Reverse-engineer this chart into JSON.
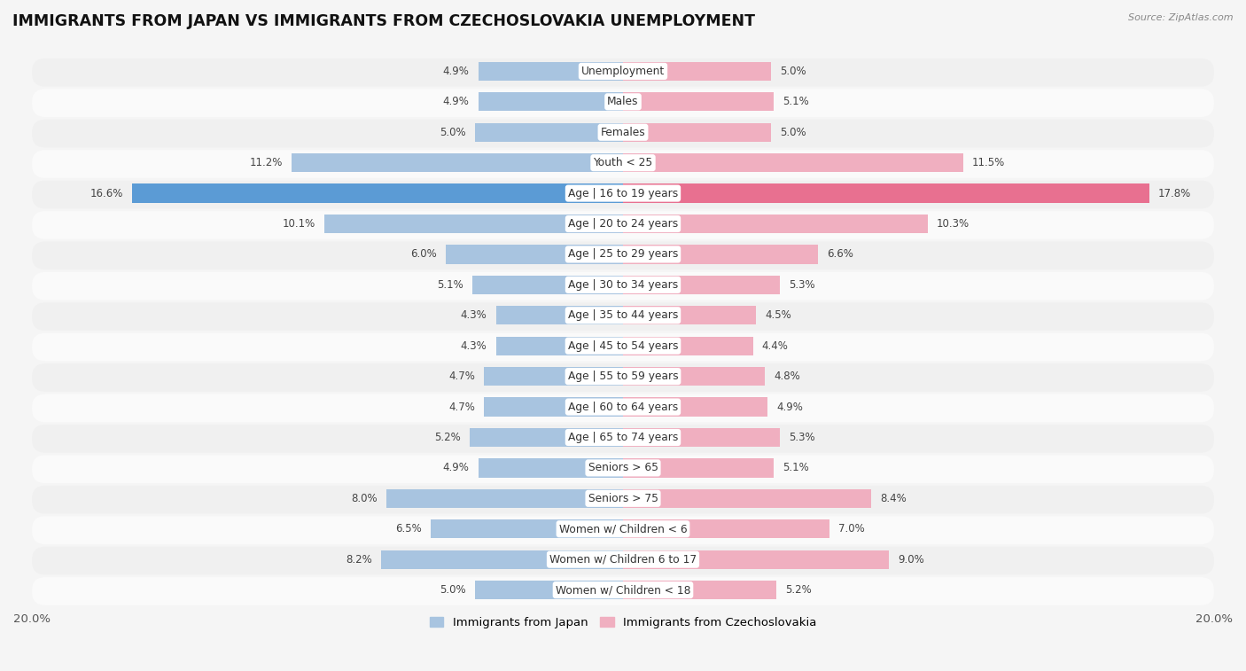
{
  "title": "IMMIGRANTS FROM JAPAN VS IMMIGRANTS FROM CZECHOSLOVAKIA UNEMPLOYMENT",
  "source": "Source: ZipAtlas.com",
  "categories": [
    "Unemployment",
    "Males",
    "Females",
    "Youth < 25",
    "Age | 16 to 19 years",
    "Age | 20 to 24 years",
    "Age | 25 to 29 years",
    "Age | 30 to 34 years",
    "Age | 35 to 44 years",
    "Age | 45 to 54 years",
    "Age | 55 to 59 years",
    "Age | 60 to 64 years",
    "Age | 65 to 74 years",
    "Seniors > 65",
    "Seniors > 75",
    "Women w/ Children < 6",
    "Women w/ Children 6 to 17",
    "Women w/ Children < 18"
  ],
  "japan_values": [
    4.9,
    4.9,
    5.0,
    11.2,
    16.6,
    10.1,
    6.0,
    5.1,
    4.3,
    4.3,
    4.7,
    4.7,
    5.2,
    4.9,
    8.0,
    6.5,
    8.2,
    5.0
  ],
  "czech_values": [
    5.0,
    5.1,
    5.0,
    11.5,
    17.8,
    10.3,
    6.6,
    5.3,
    4.5,
    4.4,
    4.8,
    4.9,
    5.3,
    5.1,
    8.4,
    7.0,
    9.0,
    5.2
  ],
  "japan_color": "#a8c4e0",
  "czech_color": "#f0afc0",
  "japan_highlight_color": "#5b9bd5",
  "czech_highlight_color": "#e87090",
  "axis_max": 20.0,
  "row_bg_odd": "#f0f0f0",
  "row_bg_even": "#fafafa",
  "legend_japan": "Immigrants from Japan",
  "legend_czech": "Immigrants from Czechoslovakia",
  "title_fontsize": 12.5,
  "label_fontsize": 8.8,
  "value_fontsize": 8.5,
  "tick_fontsize": 9.5
}
